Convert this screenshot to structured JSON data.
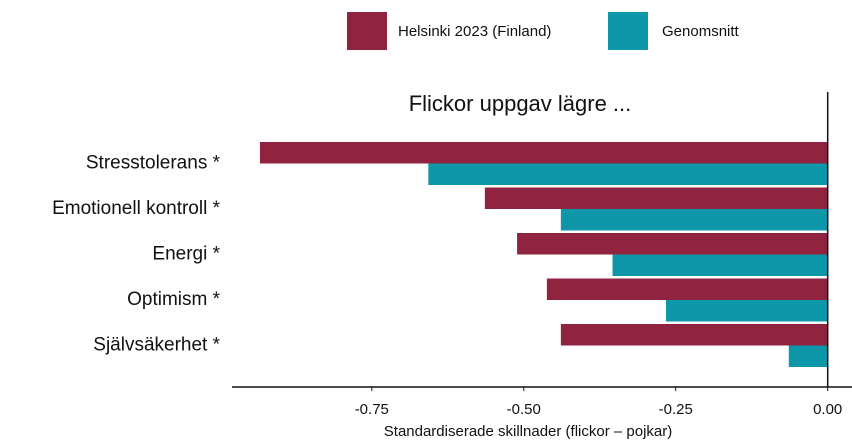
{
  "chart_data": {
    "type": "barh",
    "annotation": "Flickor uppgav lägre ...",
    "xlabel": "Standardiserade skillnader (flickor – pojkar)",
    "categories": [
      "Stresstolerans *",
      "Emotionell kontroll *",
      "Energi *",
      "Optimism *",
      "Självsäkerhet *"
    ],
    "series": [
      {
        "name": "Helsinki 2023 (Finland)",
        "color": "#8f2340",
        "values": [
          -0.934,
          -0.564,
          -0.511,
          -0.462,
          -0.439
        ]
      },
      {
        "name": "Genomsnitt",
        "color": "#0e97a8",
        "values": [
          -0.657,
          -0.439,
          -0.354,
          -0.266,
          -0.064
        ]
      }
    ],
    "xlim": [
      -0.98,
      0.04
    ],
    "xticks": [
      -0.75,
      {
        "value": -0.5,
        "label": "-0.50"
      },
      -0.25,
      {
        "value": 0,
        "label": "0.00"
      }
    ],
    "legend": "top"
  }
}
